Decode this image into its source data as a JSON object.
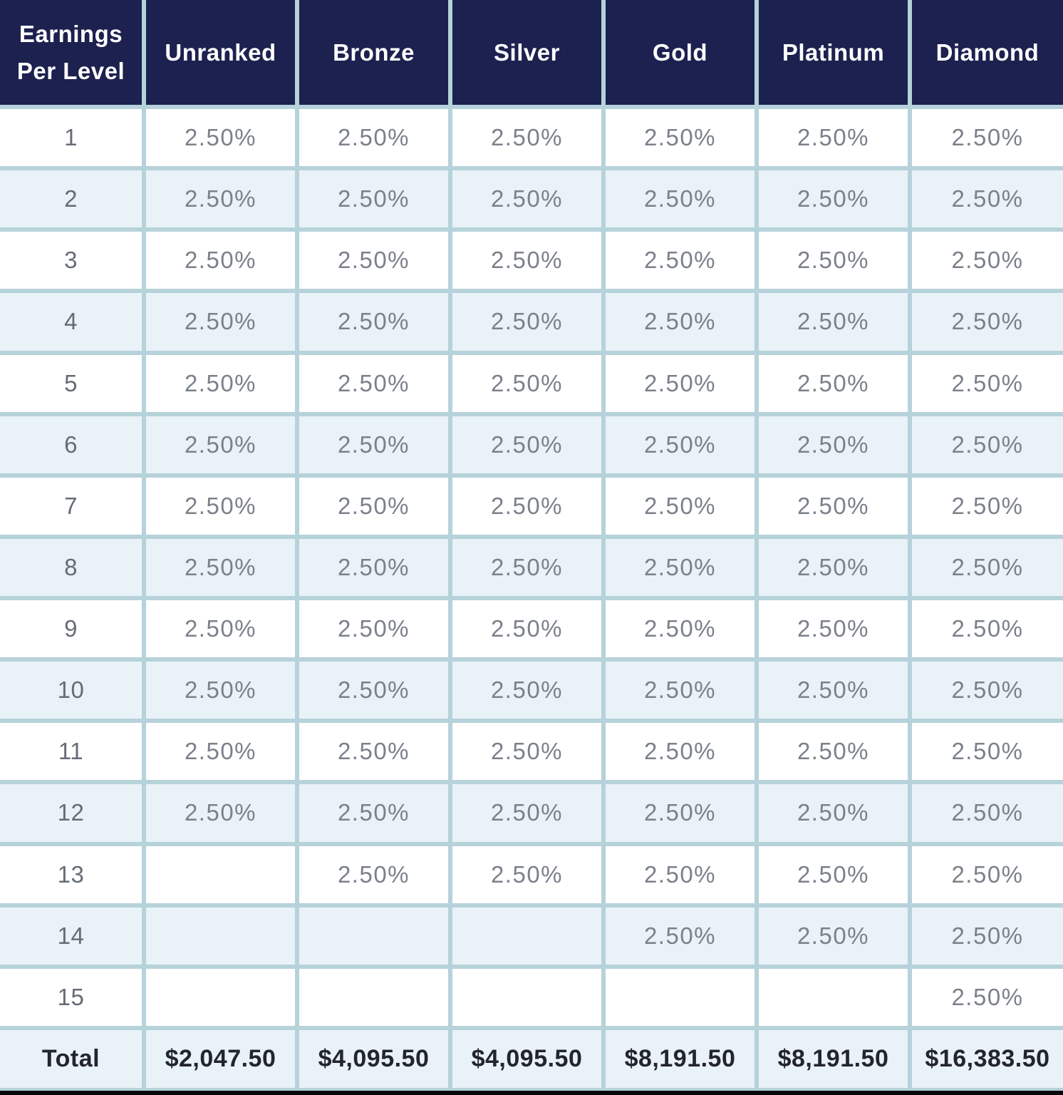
{
  "chart_data": {
    "type": "table",
    "title": "Earnings Per Level",
    "header": {
      "level_label": "Earnings Per Level",
      "rank_columns": [
        "Unranked",
        "Bronze",
        "Silver",
        "Gold",
        "Platinum",
        "Diamond"
      ]
    },
    "rows": [
      {
        "level": "1",
        "values": [
          "2.50%",
          "2.50%",
          "2.50%",
          "2.50%",
          "2.50%",
          "2.50%"
        ]
      },
      {
        "level": "2",
        "values": [
          "2.50%",
          "2.50%",
          "2.50%",
          "2.50%",
          "2.50%",
          "2.50%"
        ]
      },
      {
        "level": "3",
        "values": [
          "2.50%",
          "2.50%",
          "2.50%",
          "2.50%",
          "2.50%",
          "2.50%"
        ]
      },
      {
        "level": "4",
        "values": [
          "2.50%",
          "2.50%",
          "2.50%",
          "2.50%",
          "2.50%",
          "2.50%"
        ]
      },
      {
        "level": "5",
        "values": [
          "2.50%",
          "2.50%",
          "2.50%",
          "2.50%",
          "2.50%",
          "2.50%"
        ]
      },
      {
        "level": "6",
        "values": [
          "2.50%",
          "2.50%",
          "2.50%",
          "2.50%",
          "2.50%",
          "2.50%"
        ]
      },
      {
        "level": "7",
        "values": [
          "2.50%",
          "2.50%",
          "2.50%",
          "2.50%",
          "2.50%",
          "2.50%"
        ]
      },
      {
        "level": "8",
        "values": [
          "2.50%",
          "2.50%",
          "2.50%",
          "2.50%",
          "2.50%",
          "2.50%"
        ]
      },
      {
        "level": "9",
        "values": [
          "2.50%",
          "2.50%",
          "2.50%",
          "2.50%",
          "2.50%",
          "2.50%"
        ]
      },
      {
        "level": "10",
        "values": [
          "2.50%",
          "2.50%",
          "2.50%",
          "2.50%",
          "2.50%",
          "2.50%"
        ]
      },
      {
        "level": "11",
        "values": [
          "2.50%",
          "2.50%",
          "2.50%",
          "2.50%",
          "2.50%",
          "2.50%"
        ]
      },
      {
        "level": "12",
        "values": [
          "2.50%",
          "2.50%",
          "2.50%",
          "2.50%",
          "2.50%",
          "2.50%"
        ]
      },
      {
        "level": "13",
        "values": [
          "",
          "2.50%",
          "2.50%",
          "2.50%",
          "2.50%",
          "2.50%"
        ]
      },
      {
        "level": "14",
        "values": [
          "",
          "",
          "",
          "2.50%",
          "2.50%",
          "2.50%"
        ]
      },
      {
        "level": "15",
        "values": [
          "",
          "",
          "",
          "",
          "",
          "2.50%"
        ]
      }
    ],
    "total": {
      "label": "Total",
      "values": [
        "$2,047.50",
        "$4,095.50",
        "$4,095.50",
        "$8,191.50",
        "$8,191.50",
        "$16,383.50"
      ]
    }
  },
  "colors": {
    "header_bg": "#1c2150",
    "header_text": "#ffffff",
    "row_stripe": "#e9f2f7",
    "row_white": "#ffffff",
    "grid_line": "#b6d2da",
    "value_text": "#7b818b",
    "level_text": "#666c76",
    "total_text": "#23252e",
    "bottom_bar": "#06070a"
  }
}
